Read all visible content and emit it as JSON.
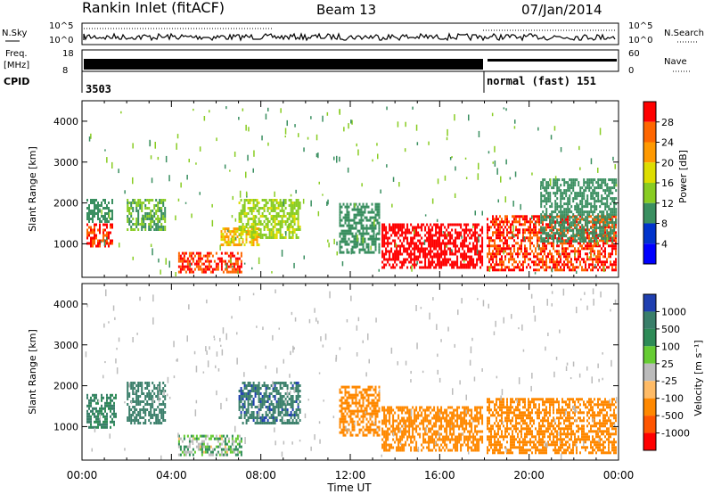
{
  "header": {
    "station": "Rankin Inlet (fitACF)",
    "beam": "Beam 13",
    "date": "07/Jan/2014"
  },
  "top_panels": {
    "nsky_label": "N.Sky",
    "nsky_ticks": [
      "10^5",
      "10^0"
    ],
    "nsearch_label": "N.Search",
    "nsearch_ticks": [
      "10^5",
      "10^0"
    ],
    "freq_label": "Freq.",
    "freq_unit": "[MHz]",
    "freq_ticks": [
      "18",
      "8"
    ],
    "nave_label": "Nave",
    "nave_ticks": [
      "60",
      "0"
    ],
    "cpid_label": "CPID",
    "cpid_segments": [
      {
        "text": "3503",
        "start_hour": 0.0,
        "end_hour": 18.0
      },
      {
        "text": "normal (fast) 151",
        "start_hour": 18.0,
        "end_hour": 24.0
      }
    ]
  },
  "power_colorbar": {
    "label": "Power [dB]",
    "ticks": [
      "28",
      "24",
      "20",
      "16",
      "12",
      "8",
      "4"
    ],
    "colors": [
      "#ff0000",
      "#ff6600",
      "#ff9900",
      "#dddd00",
      "#88cc22",
      "#3a8f60",
      "#0033cc",
      "#0000ff"
    ]
  },
  "velocity_colorbar": {
    "label": "Velocity [m s⁻¹]",
    "ticks": [
      "1000",
      "500",
      "100",
      "25",
      "-25",
      "-100",
      "-500",
      "-1000"
    ],
    "colors": [
      "#1f3fb0",
      "#3a7f6a",
      "#2e8b57",
      "#66cc33",
      "#bbbbbb",
      "#ffbb66",
      "#ff8800",
      "#ff5500",
      "#ff0000"
    ]
  },
  "colors": {
    "power_red": "#ff0000",
    "power_orange": "#ff8800",
    "power_green": "#3a8f60",
    "power_blue": "#1f3fb0",
    "vel_green": "#3a8f60",
    "vel_blue": "#1f3fb0",
    "vel_orange": "#ff8800",
    "vel_grey": "#bbbbbb"
  },
  "chart_data": [
    {
      "type": "heatmap",
      "title": "Power",
      "xlabel": "",
      "ylabel": "Slant Range [km]",
      "xlim": [
        0,
        24
      ],
      "ylim": [
        180,
        4500
      ],
      "yticks": [
        "1000",
        "2000",
        "3000",
        "4000"
      ],
      "xticks_hours": [
        0,
        4,
        8,
        12,
        16,
        20,
        24
      ],
      "regions": [
        {
          "x": [
            0.2,
            1.4
          ],
          "y": [
            900,
            1500
          ],
          "value": 26
        },
        {
          "x": [
            0.2,
            1.4
          ],
          "y": [
            1500,
            2100
          ],
          "value": 10
        },
        {
          "x": [
            2.0,
            3.8
          ],
          "y": [
            1300,
            2100
          ],
          "value": 12
        },
        {
          "x": [
            4.3,
            7.2
          ],
          "y": [
            250,
            800
          ],
          "value": 26
        },
        {
          "x": [
            6.2,
            8.0
          ],
          "y": [
            900,
            1400
          ],
          "value": 18
        },
        {
          "x": [
            7.0,
            9.8
          ],
          "y": [
            1100,
            2100
          ],
          "value": 14
        },
        {
          "x": [
            11.5,
            13.4
          ],
          "y": [
            700,
            2000
          ],
          "value": 10
        },
        {
          "x": [
            13.4,
            18.0
          ],
          "y": [
            350,
            1500
          ],
          "value": 28
        },
        {
          "x": [
            18.1,
            24.0
          ],
          "y": [
            300,
            1700
          ],
          "value": 26
        },
        {
          "x": [
            20.5,
            24.0
          ],
          "y": [
            1000,
            2600
          ],
          "value": 10
        }
      ]
    },
    {
      "type": "heatmap",
      "title": "Velocity",
      "xlabel": "Time UT",
      "ylabel": "Slant Range [km]",
      "xlim": [
        0,
        24
      ],
      "ylim": [
        180,
        4500
      ],
      "yticks": [
        "1000",
        "2000",
        "3000",
        "4000"
      ],
      "xticks": [
        "00:00",
        "04:00",
        "08:00",
        "12:00",
        "16:00",
        "20:00",
        "00:00"
      ],
      "regions": [
        {
          "x": [
            0.2,
            1.6
          ],
          "y": [
            900,
            1800
          ],
          "value": 300
        },
        {
          "x": [
            2.0,
            3.8
          ],
          "y": [
            1000,
            2100
          ],
          "value": 400
        },
        {
          "x": [
            4.3,
            7.2
          ],
          "y": [
            250,
            800
          ],
          "value": 50
        },
        {
          "x": [
            7.0,
            9.8
          ],
          "y": [
            1000,
            2100
          ],
          "value": 700
        },
        {
          "x": [
            11.5,
            13.4
          ],
          "y": [
            700,
            2000
          ],
          "value": -300
        },
        {
          "x": [
            13.4,
            18.0
          ],
          "y": [
            350,
            1500
          ],
          "value": -300
        },
        {
          "x": [
            18.1,
            24.0
          ],
          "y": [
            300,
            1700
          ],
          "value": -400
        }
      ]
    }
  ]
}
